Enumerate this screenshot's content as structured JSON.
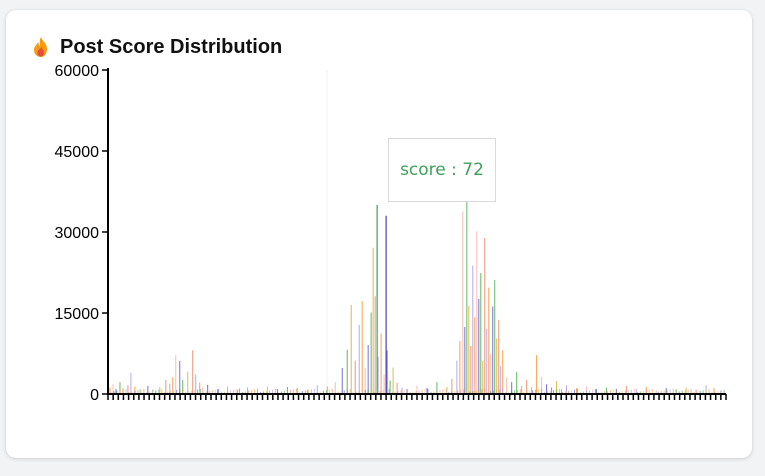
{
  "card": {
    "title": "Post Score Distribution",
    "icon": "fire-icon"
  },
  "tooltip": {
    "name": "score",
    "separator": " : ",
    "value": "72"
  },
  "chart_data": {
    "type": "bar",
    "title": "Post Score Distribution",
    "xlabel": "",
    "ylabel": "",
    "ylim": [
      0,
      60000
    ],
    "yticks": [
      "60000",
      "45000",
      "30000",
      "15000",
      "0"
    ],
    "grid": false,
    "legend": "none",
    "x_tick_count": 120,
    "colors": [
      "#ff7f0e",
      "#f5a3a3",
      "#4a3fbf",
      "#2ca02c",
      "#d4a017",
      "#e8704a",
      "#9b8de0"
    ],
    "series": [
      {
        "values": [
          {
            "x": 2,
            "y": 1200
          },
          {
            "x": 5,
            "y": 1800
          },
          {
            "x": 8,
            "y": 900
          },
          {
            "x": 12,
            "y": 2200
          },
          {
            "x": 15,
            "y": 1100
          },
          {
            "x": 20,
            "y": 1600
          },
          {
            "x": 23,
            "y": 3900
          },
          {
            "x": 27,
            "y": 1400
          },
          {
            "x": 32,
            "y": 900
          },
          {
            "x": 40,
            "y": 1500
          },
          {
            "x": 45,
            "y": 800
          },
          {
            "x": 52,
            "y": 1300
          },
          {
            "x": 58,
            "y": 2600
          },
          {
            "x": 62,
            "y": 1900
          },
          {
            "x": 65,
            "y": 3100
          },
          {
            "x": 68,
            "y": 7200
          },
          {
            "x": 72,
            "y": 6100
          },
          {
            "x": 75,
            "y": 2600
          },
          {
            "x": 80,
            "y": 4100
          },
          {
            "x": 85,
            "y": 8100
          },
          {
            "x": 88,
            "y": 3600
          },
          {
            "x": 92,
            "y": 2100
          },
          {
            "x": 95,
            "y": 1200
          },
          {
            "x": 100,
            "y": 1700
          },
          {
            "x": 110,
            "y": 900
          },
          {
            "x": 120,
            "y": 1400
          },
          {
            "x": 130,
            "y": 800
          },
          {
            "x": 140,
            "y": 1200
          },
          {
            "x": 150,
            "y": 1000
          },
          {
            "x": 160,
            "y": 1500
          },
          {
            "x": 170,
            "y": 900
          },
          {
            "x": 180,
            "y": 1300
          },
          {
            "x": 190,
            "y": 1100
          },
          {
            "x": 200,
            "y": 800
          },
          {
            "x": 210,
            "y": 1600
          },
          {
            "x": 220,
            "y": 1400
          },
          {
            "x": 228,
            "y": 2200
          },
          {
            "x": 235,
            "y": 4800
          },
          {
            "x": 240,
            "y": 8200
          },
          {
            "x": 244,
            "y": 16500
          },
          {
            "x": 248,
            "y": 6200
          },
          {
            "x": 252,
            "y": 12800
          },
          {
            "x": 255,
            "y": 17200
          },
          {
            "x": 258,
            "y": 4800
          },
          {
            "x": 261,
            "y": 9100
          },
          {
            "x": 264,
            "y": 15100
          },
          {
            "x": 266,
            "y": 27100
          },
          {
            "x": 268,
            "y": 18100
          },
          {
            "x": 271,
            "y": 6900
          },
          {
            "x": 274,
            "y": 11200
          },
          {
            "x": 277,
            "y": 3600
          },
          {
            "x": 280,
            "y": 8100
          },
          {
            "x": 283,
            "y": 2500
          },
          {
            "x": 286,
            "y": 4900
          },
          {
            "x": 290,
            "y": 2100
          },
          {
            "x": 295,
            "y": 1200
          },
          {
            "x": 300,
            "y": 900
          },
          {
            "x": 310,
            "y": 1500
          },
          {
            "x": 320,
            "y": 1100
          },
          {
            "x": 330,
            "y": 2200
          },
          {
            "x": 340,
            "y": 1300
          },
          {
            "x": 345,
            "y": 2800
          },
          {
            "x": 350,
            "y": 6200
          },
          {
            "x": 353,
            "y": 9800
          },
          {
            "x": 356,
            "y": 33800
          },
          {
            "x": 358,
            "y": 12400
          },
          {
            "x": 360,
            "y": 44700
          },
          {
            "x": 362,
            "y": 16300
          },
          {
            "x": 364,
            "y": 8900
          },
          {
            "x": 366,
            "y": 23800
          },
          {
            "x": 368,
            "y": 14200
          },
          {
            "x": 370,
            "y": 30100
          },
          {
            "x": 372,
            "y": 17600
          },
          {
            "x": 374,
            "y": 22400
          },
          {
            "x": 376,
            "y": 6100
          },
          {
            "x": 378,
            "y": 28900
          },
          {
            "x": 380,
            "y": 12100
          },
          {
            "x": 382,
            "y": 19700
          },
          {
            "x": 384,
            "y": 7400
          },
          {
            "x": 386,
            "y": 16200
          },
          {
            "x": 388,
            "y": 21100
          },
          {
            "x": 390,
            "y": 10300
          },
          {
            "x": 392,
            "y": 13700
          },
          {
            "x": 394,
            "y": 5200
          },
          {
            "x": 396,
            "y": 8100
          },
          {
            "x": 400,
            "y": 3100
          },
          {
            "x": 405,
            "y": 2200
          },
          {
            "x": 410,
            "y": 4100
          },
          {
            "x": 415,
            "y": 1500
          },
          {
            "x": 420,
            "y": 2600
          },
          {
            "x": 425,
            "y": 1300
          },
          {
            "x": 430,
            "y": 7200
          },
          {
            "x": 435,
            "y": 3200
          },
          {
            "x": 440,
            "y": 1800
          },
          {
            "x": 445,
            "y": 1200
          },
          {
            "x": 450,
            "y": 2400
          },
          {
            "x": 455,
            "y": 900
          },
          {
            "x": 460,
            "y": 1600
          },
          {
            "x": 470,
            "y": 1100
          },
          {
            "x": 480,
            "y": 1400
          },
          {
            "x": 490,
            "y": 900
          },
          {
            "x": 500,
            "y": 1200
          },
          {
            "x": 510,
            "y": 800
          },
          {
            "x": 520,
            "y": 1500
          },
          {
            "x": 530,
            "y": 900
          },
          {
            "x": 540,
            "y": 1300
          },
          {
            "x": 550,
            "y": 700
          },
          {
            "x": 560,
            "y": 1100
          },
          {
            "x": 570,
            "y": 900
          },
          {
            "x": 580,
            "y": 1200
          },
          {
            "x": 590,
            "y": 800
          },
          {
            "x": 600,
            "y": 1600
          },
          {
            "x": 608,
            "y": 1100
          }
        ]
      }
    ],
    "highlight": {
      "x": 270,
      "y": 35000,
      "label": "score : 72",
      "color": "#3ea15a"
    },
    "highlight2": {
      "x": 279,
      "y": 33000,
      "color": "#4a3fbf"
    }
  }
}
